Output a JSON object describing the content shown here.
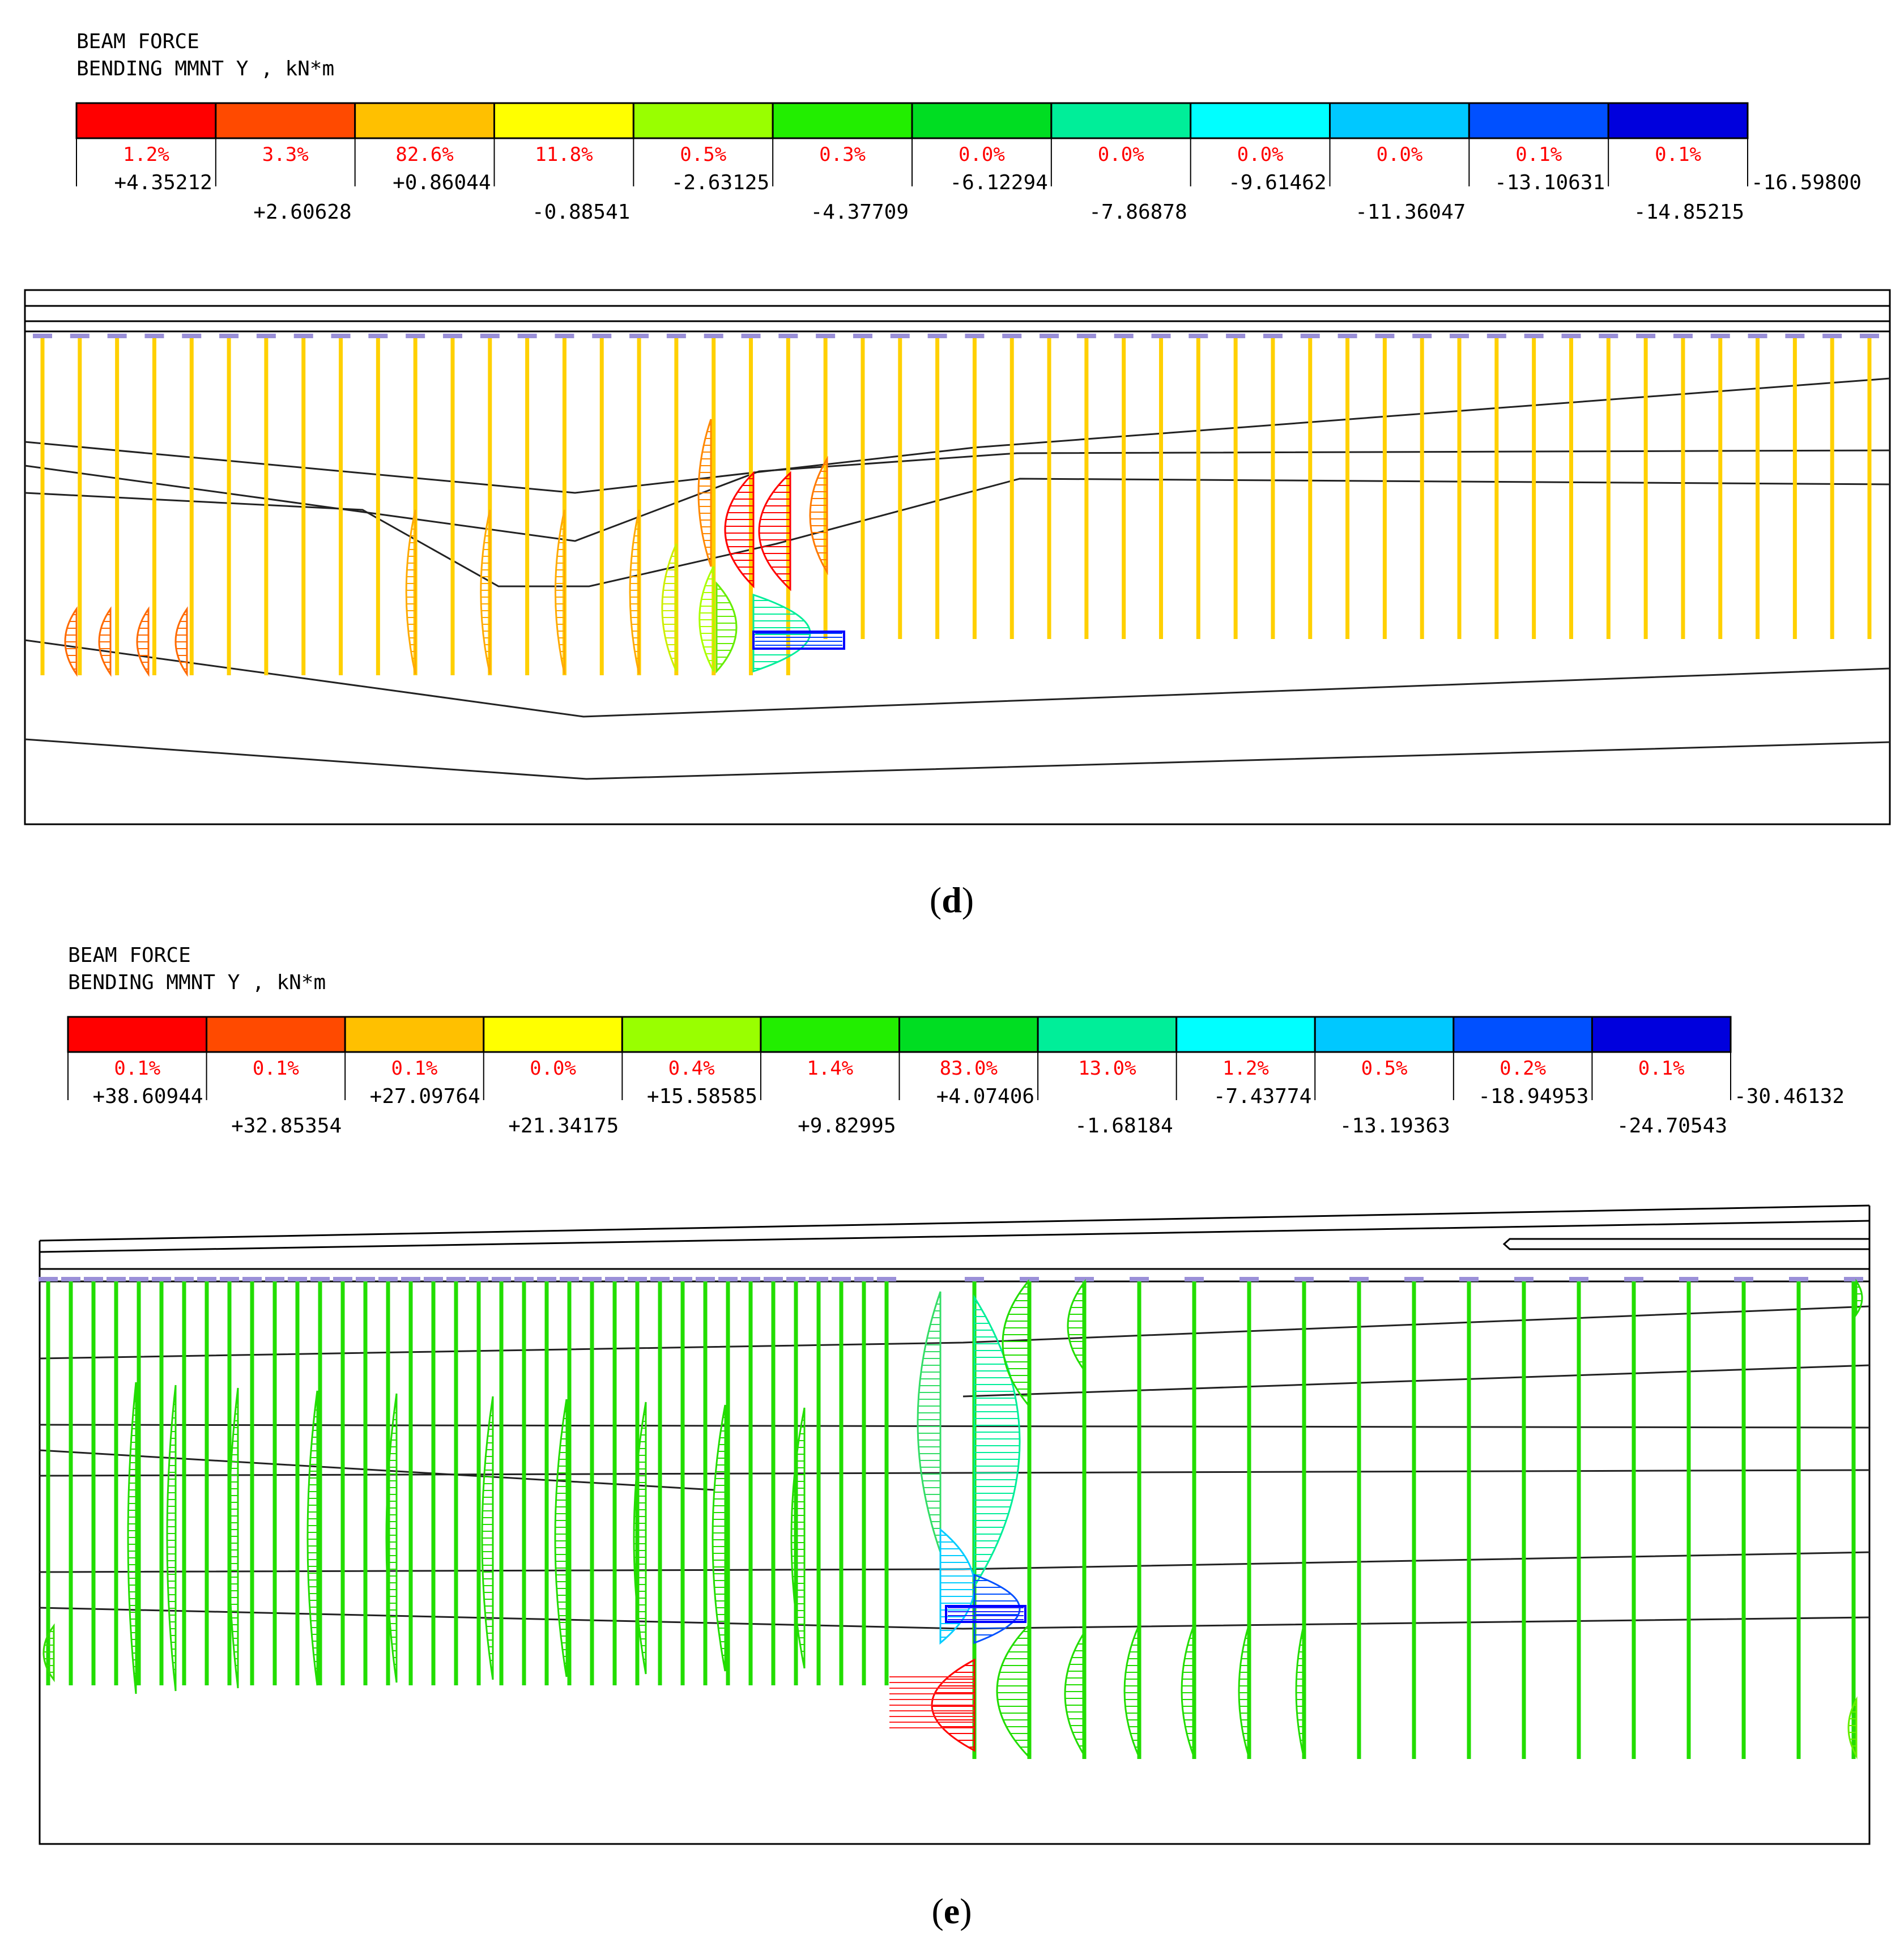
{
  "panels": [
    {
      "header_line1": "BEAM FORCE",
      "header_line2": "BENDING MMNT Y , kN*m",
      "legend": {
        "colors": [
          "#ff0000",
          "#ff4a00",
          "#ffc000",
          "#ffff00",
          "#99ff00",
          "#22ee00",
          "#00dd22",
          "#00ee99",
          "#00ffff",
          "#00c8ff",
          "#0050ff",
          "#0000dd"
        ],
        "percents": [
          "1.2%",
          "3.3%",
          "82.6%",
          "11.8%",
          "0.5%",
          "0.3%",
          "0.0%",
          "0.0%",
          "0.0%",
          "0.0%",
          "0.1%",
          "0.1%"
        ],
        "values": [
          "+4.35212",
          "+2.60628",
          "+0.86044",
          "-0.88541",
          "-2.63125",
          "-4.37709",
          "-6.12294",
          "-7.86878",
          "-9.61462",
          "-11.36047",
          "-13.10631",
          "-14.85215",
          "-16.59800"
        ]
      },
      "caption": "(d)",
      "caption_letter": "d",
      "pile_color": "#ffd000",
      "pile_count": 50
    },
    {
      "header_line1": "BEAM FORCE",
      "header_line2": "BENDING MMNT Y , kN*m",
      "legend": {
        "colors": [
          "#ff0000",
          "#ff4a00",
          "#ffc000",
          "#ffff00",
          "#99ff00",
          "#22ee00",
          "#00dd22",
          "#00ee99",
          "#00ffff",
          "#00c8ff",
          "#0050ff",
          "#0000dd"
        ],
        "percents": [
          "0.1%",
          "0.1%",
          "0.1%",
          "0.0%",
          "0.4%",
          "1.4%",
          "83.0%",
          "13.0%",
          "1.2%",
          "0.5%",
          "0.2%",
          "0.1%"
        ],
        "values": [
          "+38.60944",
          "+32.85354",
          "+27.09764",
          "+21.34175",
          "+15.58585",
          "+9.82995",
          "+4.07406",
          "-1.68184",
          "-7.43774",
          "-13.19363",
          "-18.94953",
          "-24.70543",
          "-30.46132"
        ]
      },
      "caption": "(e)",
      "caption_letter": "e",
      "pile_color": "#22dd00",
      "pile_count": 50
    }
  ]
}
